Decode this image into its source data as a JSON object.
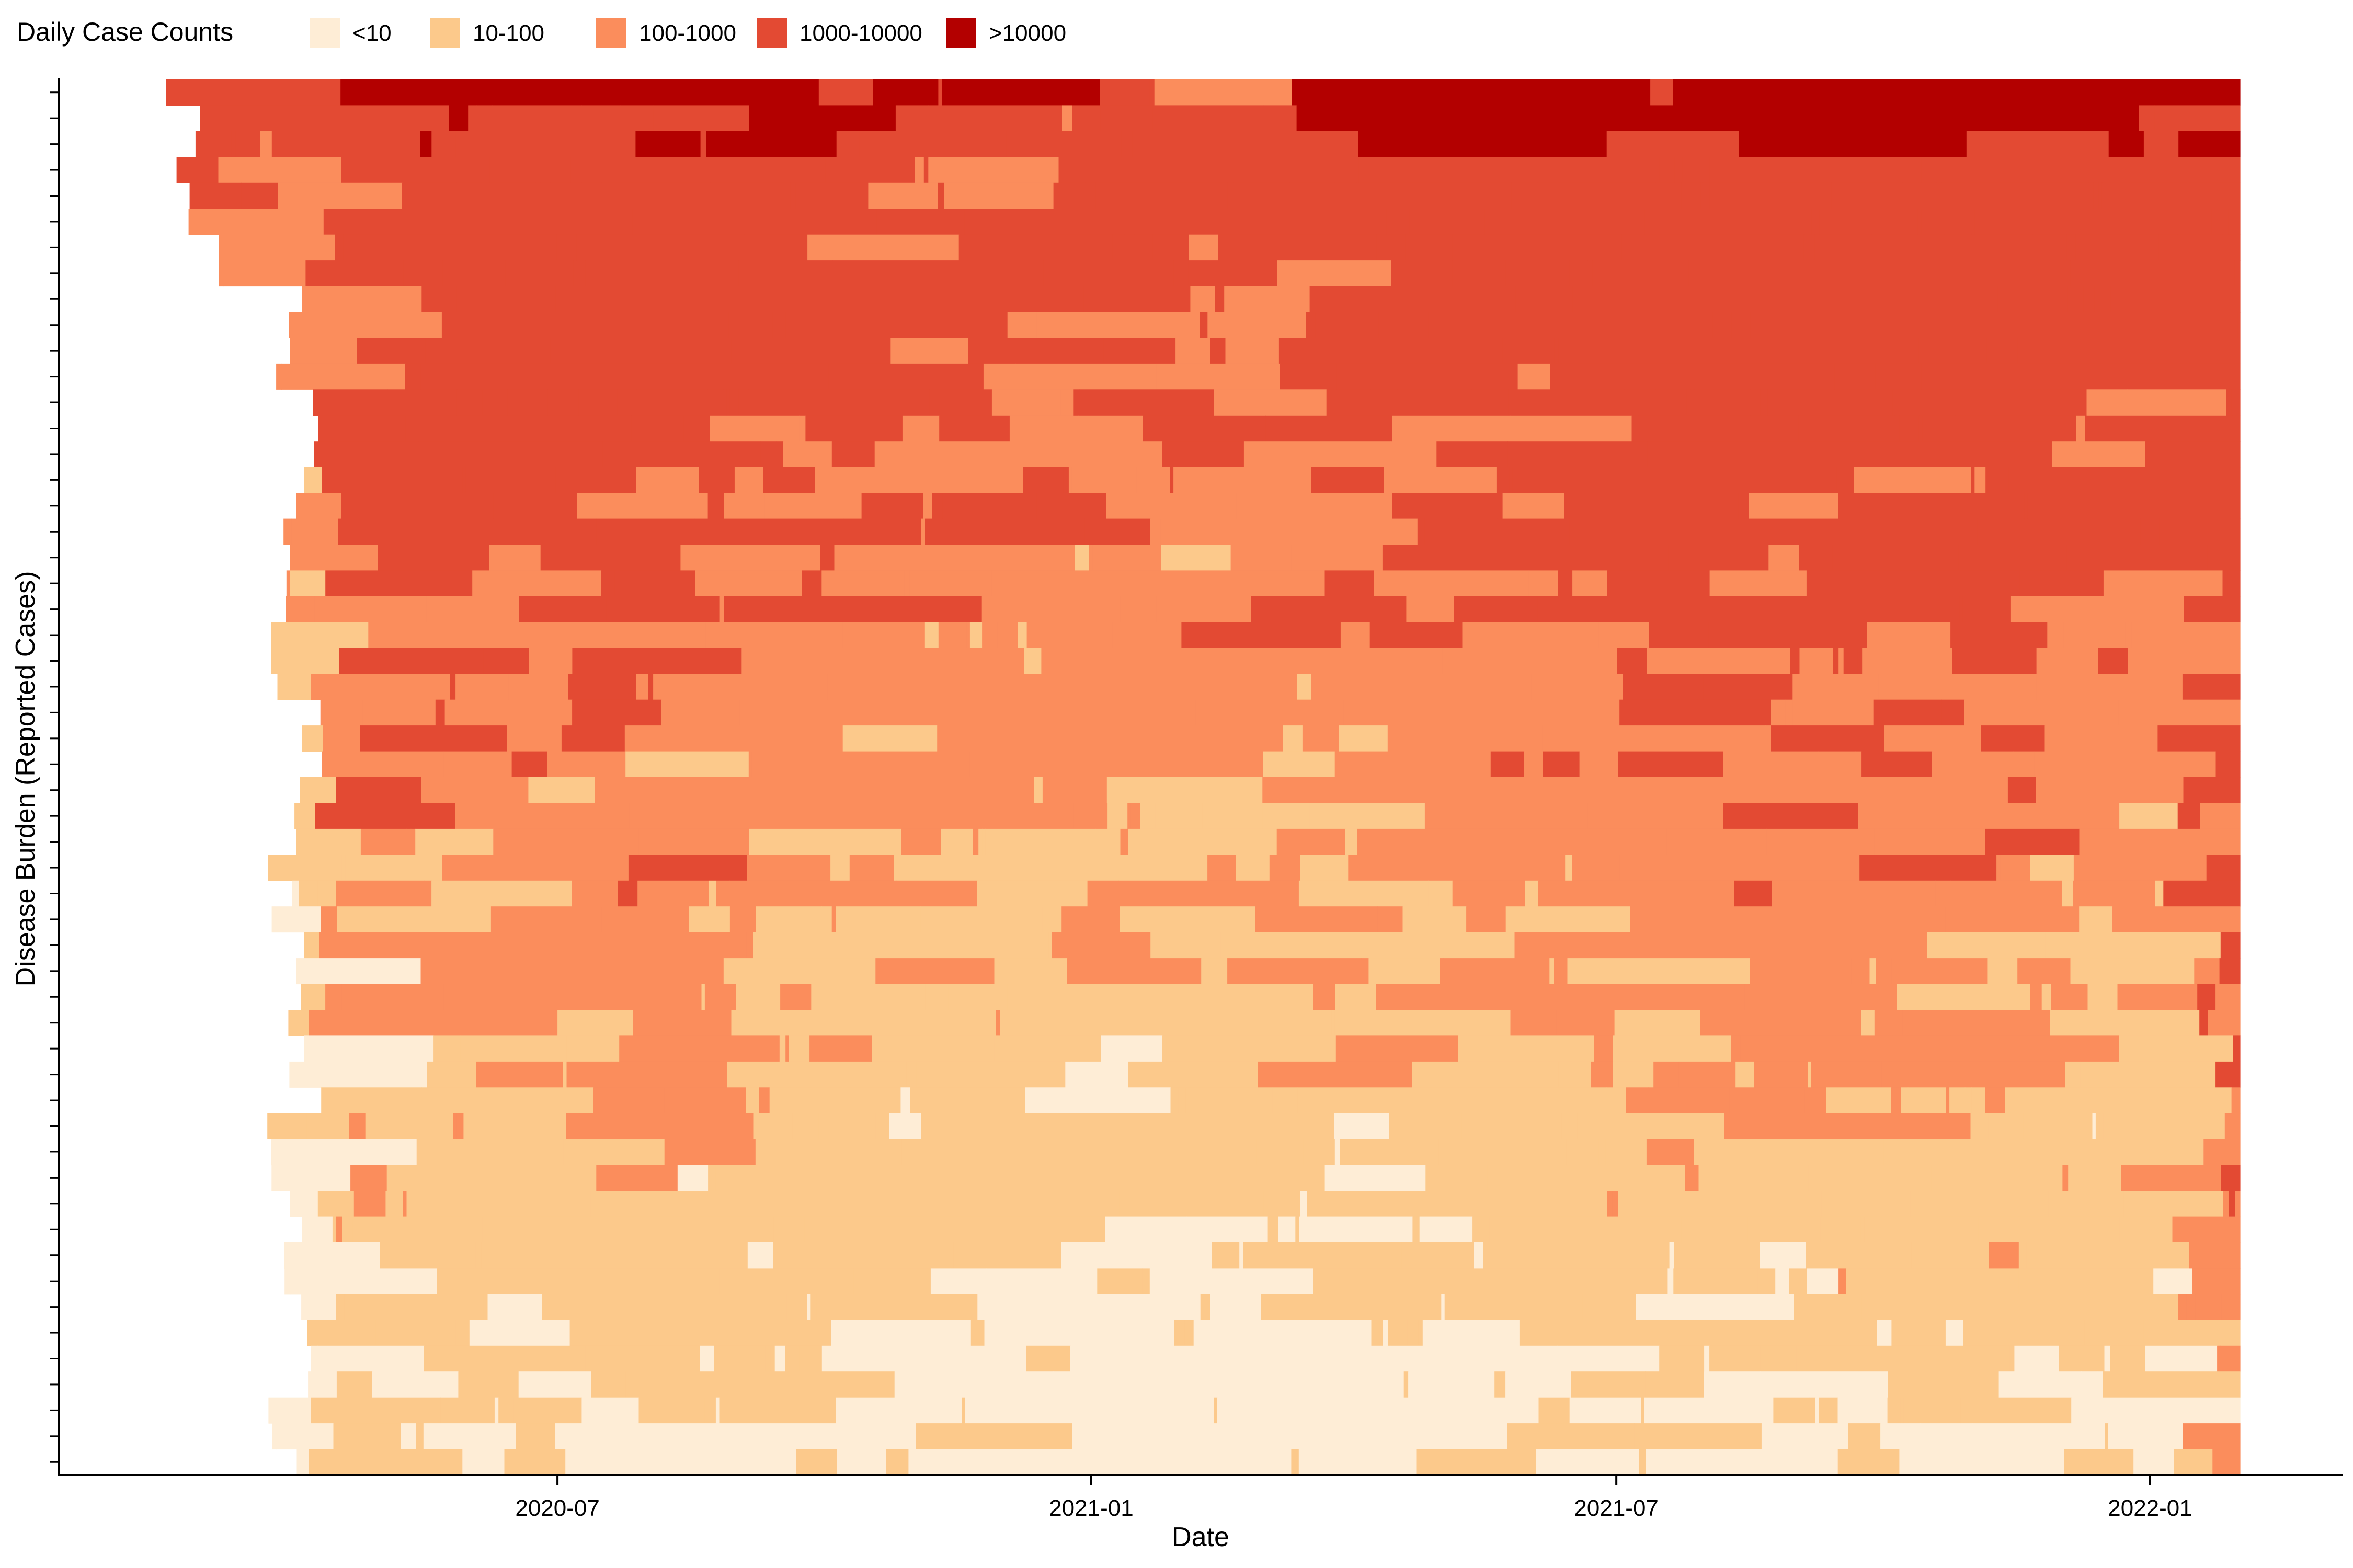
{
  "chart_data": {
    "type": "heatmap",
    "title": "",
    "xlabel": "Date",
    "ylabel": "Disease Burden (Reported Cases)",
    "x_range": [
      "2020-02-15",
      "2022-02-01"
    ],
    "x_ticks": [
      "2020-07",
      "2021-01",
      "2021-07",
      "2022-01"
    ],
    "row_count": 54,
    "legend": {
      "title": "Daily Case Counts",
      "position": "top",
      "entries": [
        {
          "label": "<10",
          "color": "#feedd6"
        },
        {
          "label": "10-100",
          "color": "#fcc98b"
        },
        {
          "label": "100-1000",
          "color": "#fb8d5c"
        },
        {
          "label": "1000-10000",
          "color": "#e34a33"
        },
        {
          "label": ">10000",
          "color": "#b30000"
        }
      ]
    },
    "grid": false,
    "background_color": "#ffffff"
  }
}
